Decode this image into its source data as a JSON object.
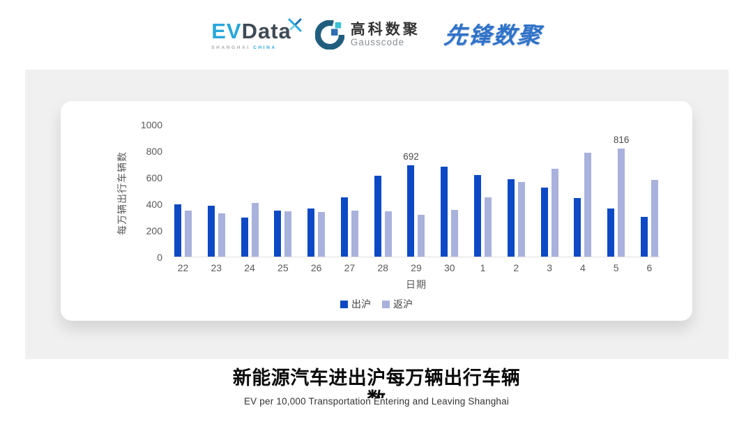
{
  "header": {
    "logos": {
      "evdata": {
        "ev": "EV",
        "data": "Data",
        "sub_left": "SHANGHAI",
        "sub_right": "CHINA"
      },
      "gausscode": {
        "cn": "高科数聚",
        "en": "Gausscode"
      },
      "xianfeng": {
        "text": "先锋数聚"
      }
    }
  },
  "chart_data": {
    "type": "bar",
    "title": "新能源汽车进出沪每万辆出行车辆数",
    "subtitle_en": "EV per 10,000 Transportation Entering and Leaving Shanghai",
    "xlabel": "日期",
    "ylabel": "每万辆出行车辆数",
    "ylim": [
      0,
      1000
    ],
    "yticks": [
      0,
      200,
      400,
      600,
      800,
      1000
    ],
    "grid": false,
    "legend_position": "bottom",
    "categories": [
      "22",
      "23",
      "24",
      "25",
      "26",
      "27",
      "28",
      "29",
      "30",
      "1",
      "2",
      "3",
      "4",
      "5",
      "6"
    ],
    "series": [
      {
        "name": "出沪",
        "color": "#0d49c4",
        "values": [
          395,
          385,
          295,
          345,
          365,
          450,
          610,
          692,
          680,
          615,
          585,
          520,
          440,
          365,
          300
        ],
        "label_indices": [
          7
        ]
      },
      {
        "name": "返沪",
        "color": "#a9b2dc",
        "values": [
          345,
          325,
          405,
          340,
          335,
          345,
          340,
          315,
          355,
          450,
          565,
          665,
          785,
          816,
          580
        ],
        "label_indices": [
          13
        ]
      }
    ],
    "colors": {
      "axis_text": "#595959",
      "baseline": "#e0e0e0",
      "value_label": "#4a4a4a"
    }
  }
}
